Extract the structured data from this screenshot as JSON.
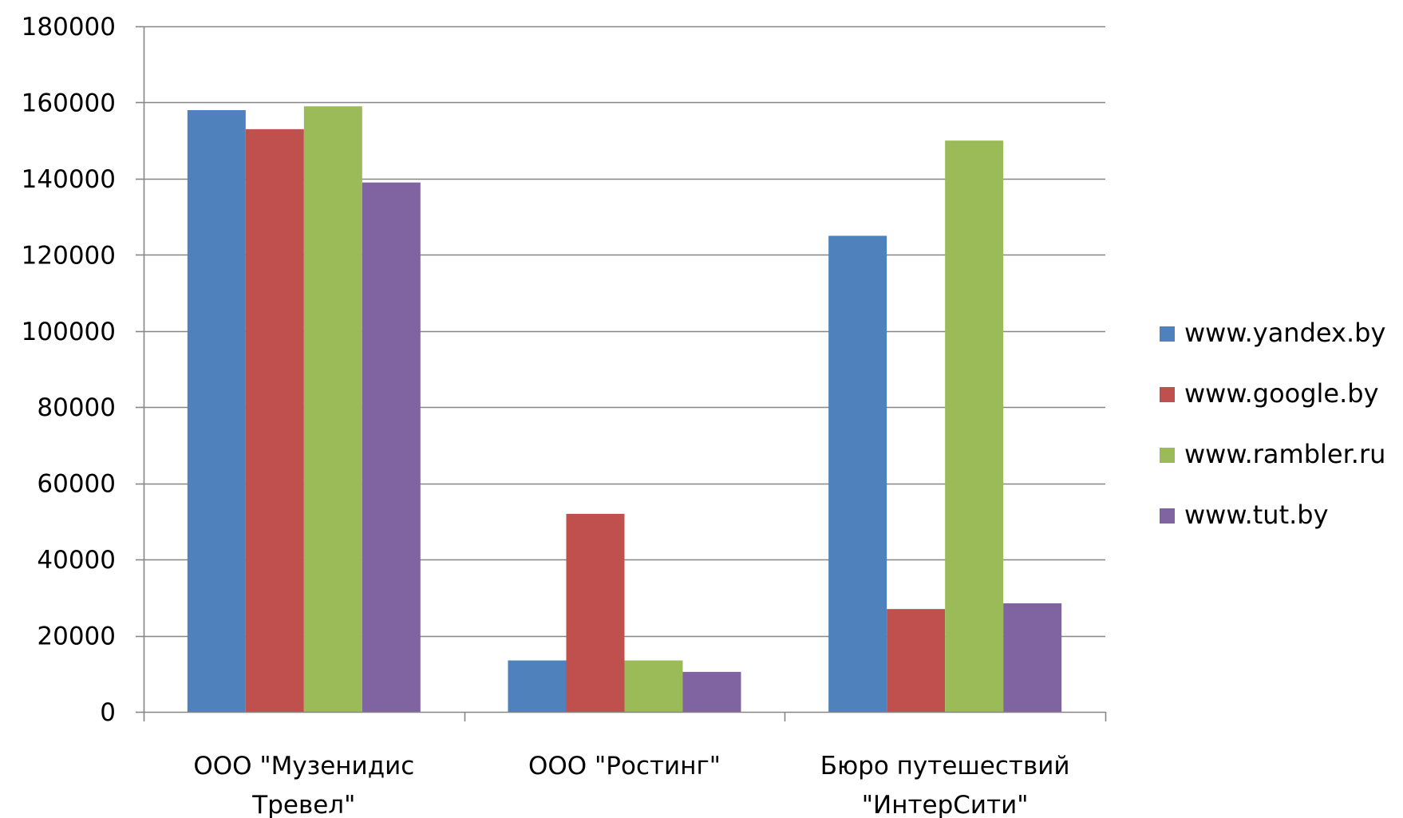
{
  "chart_data": {
    "type": "bar",
    "title": "",
    "xlabel": "",
    "ylabel": "",
    "categories": [
      [
        "ООО \"Музенидис",
        "Тревел\""
      ],
      [
        "ООО \"Ростинг\""
      ],
      [
        "Бюро путешествий",
        "\"ИнтерСити\""
      ]
    ],
    "series": [
      {
        "name": "www.yandex.by",
        "color": "#4F81BD",
        "values": [
          158000,
          13500,
          125000
        ]
      },
      {
        "name": "www.google.by",
        "color": "#C0504D",
        "values": [
          153000,
          52000,
          27000
        ]
      },
      {
        "name": "www.rambler.ru",
        "color": "#9BBB59",
        "values": [
          159000,
          13500,
          150000
        ]
      },
      {
        "name": "www.tut.by",
        "color": "#8064A2",
        "values": [
          139000,
          10500,
          28500
        ]
      }
    ],
    "ylim": [
      0,
      180000
    ],
    "yticks": [
      0,
      20000,
      40000,
      60000,
      80000,
      100000,
      120000,
      140000,
      160000,
      180000
    ],
    "grid": true,
    "gridline_color": "#868686",
    "legend_position": "right"
  }
}
